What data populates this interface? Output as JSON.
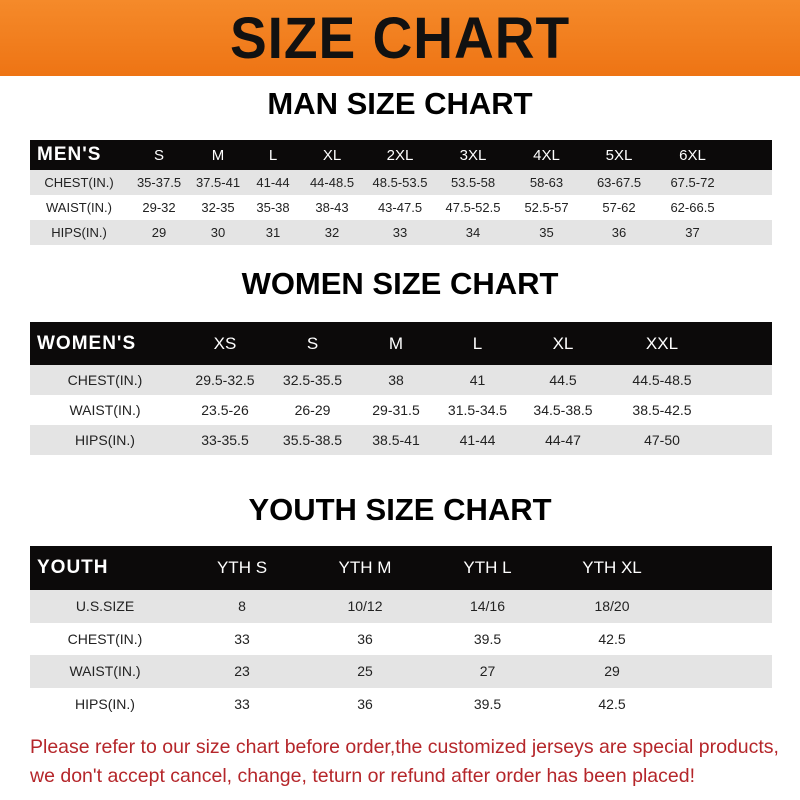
{
  "banner_title": "SIZE CHART",
  "men": {
    "title": "MAN SIZE CHART",
    "header": [
      "MEN'S",
      "S",
      "M",
      "L",
      "XL",
      "2XL",
      "3XL",
      "4XL",
      "5XL",
      "6XL"
    ],
    "rows": [
      [
        "CHEST(IN.)",
        "35-37.5",
        "37.5-41",
        "41-44",
        "44-48.5",
        "48.5-53.5",
        "53.5-58",
        "58-63",
        "63-67.5",
        "67.5-72"
      ],
      [
        "WAIST(IN.)",
        "29-32",
        "32-35",
        "35-38",
        "38-43",
        "43-47.5",
        "47.5-52.5",
        "52.5-57",
        "57-62",
        "62-66.5"
      ],
      [
        "HIPS(IN.)",
        "29",
        "30",
        "31",
        "32",
        "33",
        "34",
        "35",
        "36",
        "37"
      ]
    ]
  },
  "women": {
    "title": "WOMEN SIZE CHART",
    "header": [
      "WOMEN'S",
      "XS",
      "S",
      "M",
      "L",
      "XL",
      "XXL"
    ],
    "rows": [
      [
        "CHEST(IN.)",
        "29.5-32.5",
        "32.5-35.5",
        "38",
        "41",
        "44.5",
        "44.5-48.5"
      ],
      [
        "WAIST(IN.)",
        "23.5-26",
        "26-29",
        "29-31.5",
        "31.5-34.5",
        "34.5-38.5",
        "38.5-42.5"
      ],
      [
        "HIPS(IN.)",
        "33-35.5",
        "35.5-38.5",
        "38.5-41",
        "41-44",
        "44-47",
        "47-50"
      ]
    ]
  },
  "youth": {
    "title": "YOUTH SIZE CHART",
    "header": [
      "YOUTH",
      "YTH S",
      "YTH M",
      "YTH L",
      "YTH XL"
    ],
    "rows": [
      [
        "U.S.SIZE",
        "8",
        "10/12",
        "14/16",
        "18/20"
      ],
      [
        "CHEST(IN.)",
        "33",
        "36",
        "39.5",
        "42.5"
      ],
      [
        "WAIST(IN.)",
        "23",
        "25",
        "27",
        "29"
      ],
      [
        "HIPS(IN.)",
        "33",
        "36",
        "39.5",
        "42.5"
      ]
    ]
  },
  "note": {
    "line1": "Please refer to our size chart before order,the customized jerseys are special products,",
    "line2": "we don't accept cancel, change, teturn or refund after order has been placed!"
  },
  "colors": {
    "banner": "#f07a1a",
    "header_row": "#0c0a0a",
    "stripe": "#e4e4e4",
    "note": "#b5262a"
  }
}
